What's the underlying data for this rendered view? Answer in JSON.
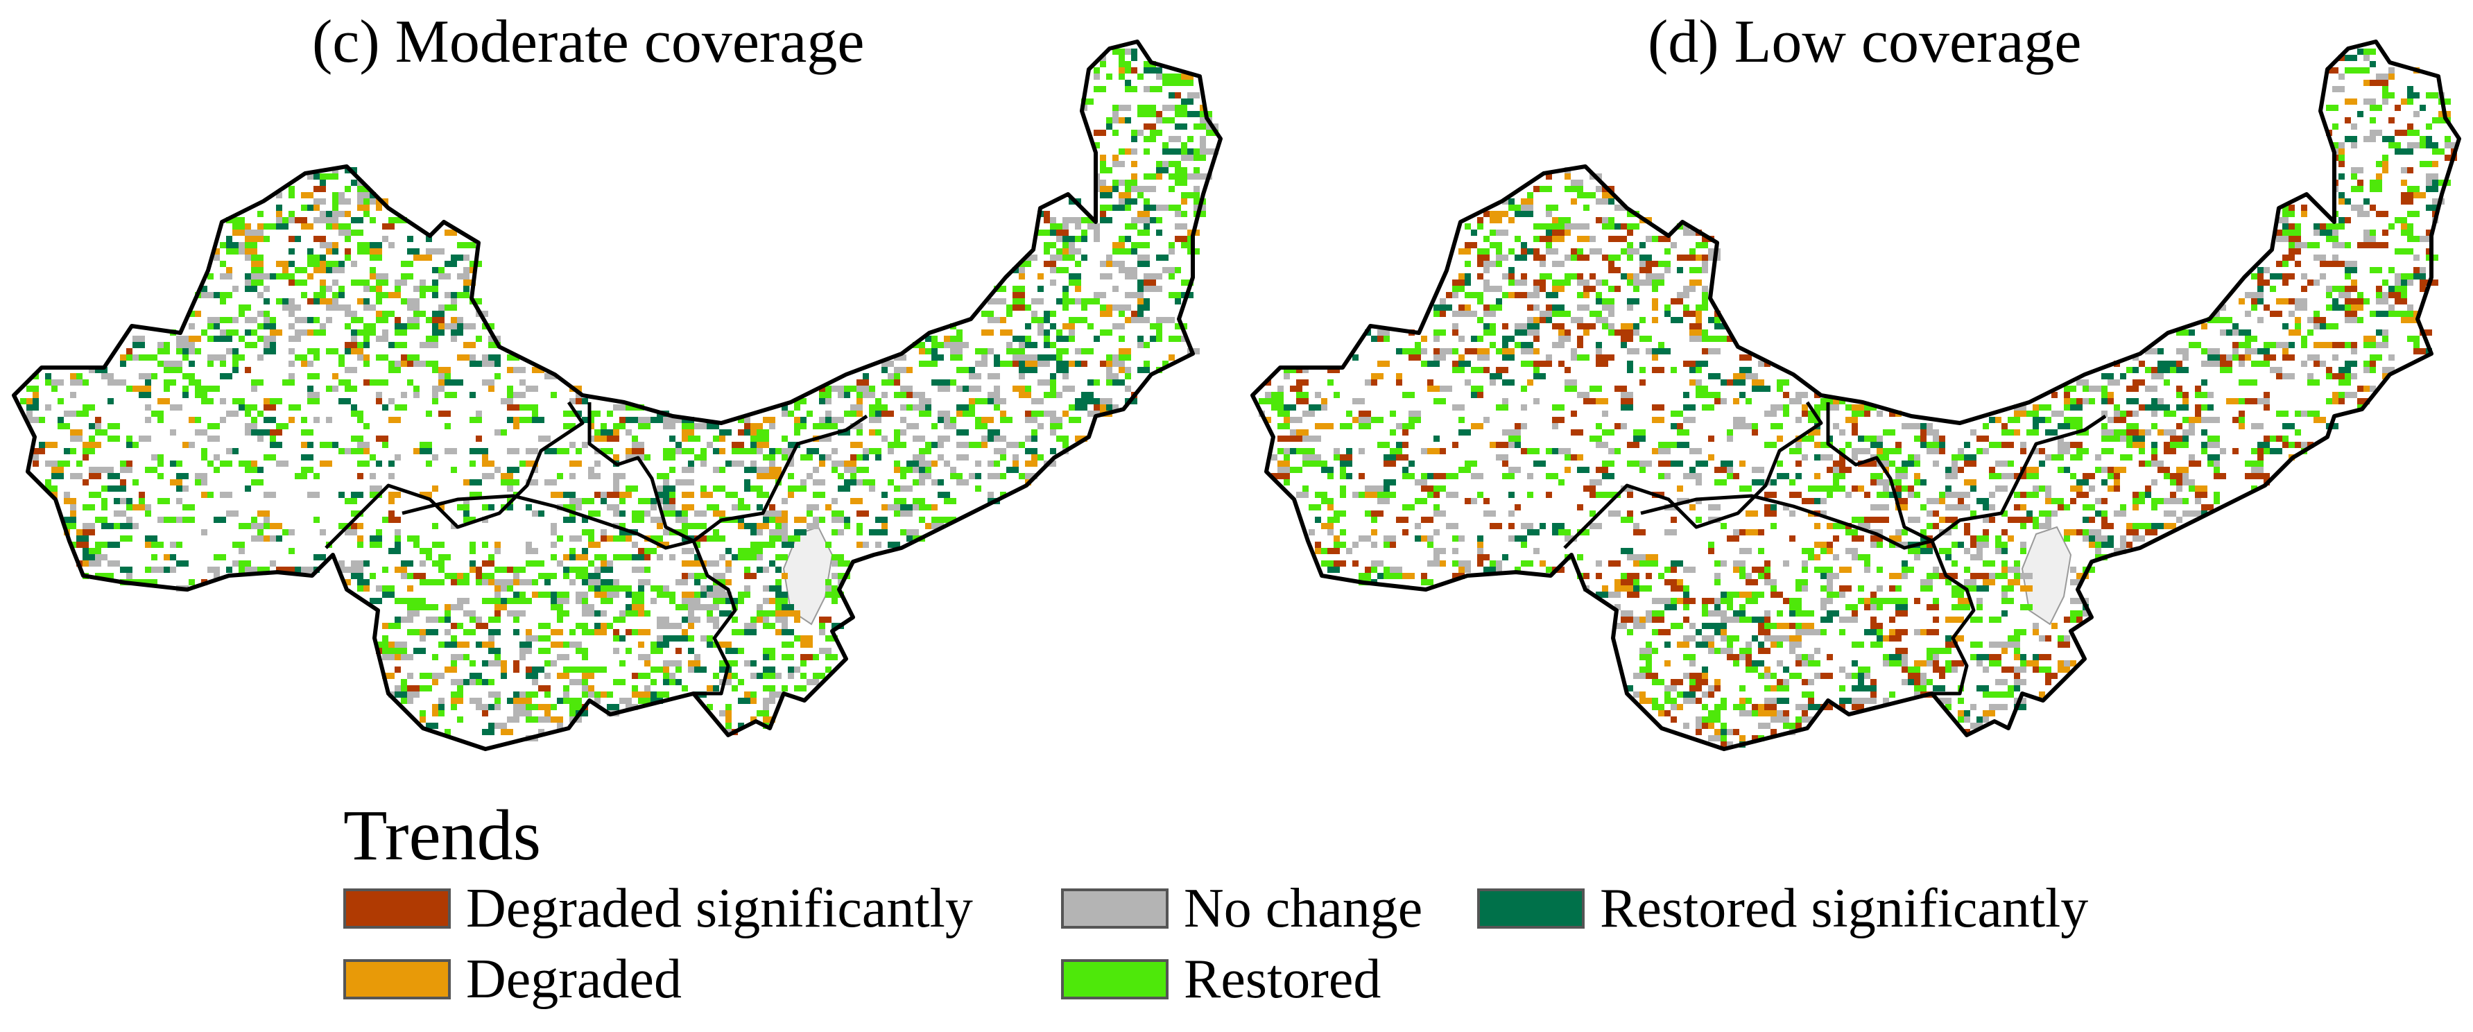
{
  "colors": {
    "degraded_significantly": "#b03a02",
    "degraded": "#e89a08",
    "no_change": "#b4b4b4",
    "restored_significantly": "#00714a",
    "restored": "#4ee80a",
    "region_fill": "#ffffff",
    "excluded_fill": "#efefef",
    "boundary": "#000000"
  },
  "panels": [
    {
      "id": "c",
      "title": "(c) Moderate coverage",
      "pixel_shares": {
        "degraded_significantly": 0.05,
        "degraded": 0.12,
        "no_change": 0.28,
        "restored_significantly": 0.17,
        "restored": 0.38
      }
    },
    {
      "id": "d",
      "title": "(d) Low coverage",
      "pixel_shares": {
        "degraded_significantly": 0.22,
        "degraded": 0.1,
        "no_change": 0.25,
        "restored_significantly": 0.13,
        "restored": 0.3
      }
    }
  ],
  "legend": {
    "title": "Trends",
    "items": [
      {
        "key": "degraded_significantly",
        "label": "Degraded significantly"
      },
      {
        "key": "degraded",
        "label": "Degraded"
      },
      {
        "key": "no_change",
        "label": "No change"
      },
      {
        "key": "restored",
        "label": "Restored"
      },
      {
        "key": "restored_significantly",
        "label": "Restored significantly"
      }
    ]
  }
}
